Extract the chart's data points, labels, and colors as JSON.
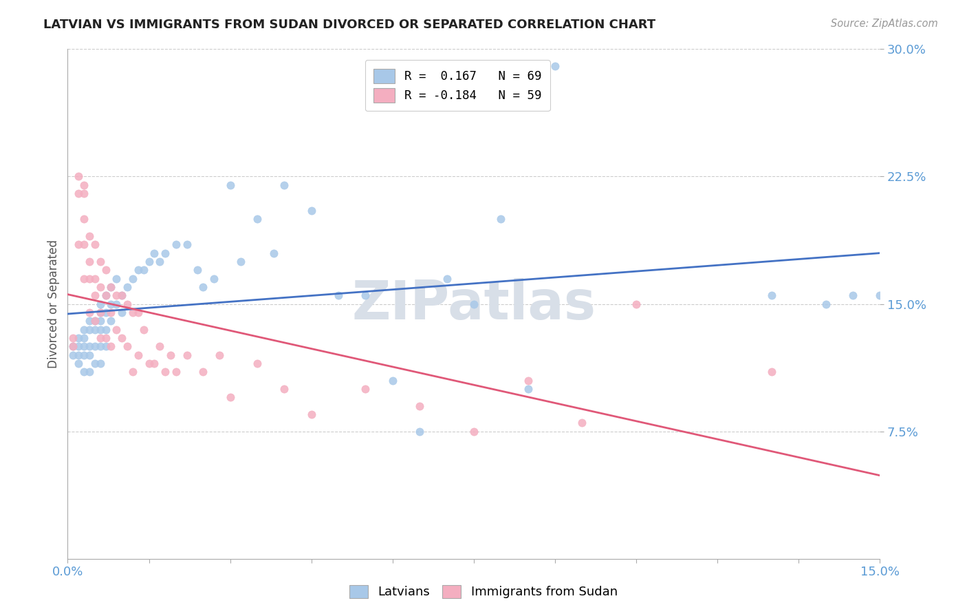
{
  "title": "LATVIAN VS IMMIGRANTS FROM SUDAN DIVORCED OR SEPARATED CORRELATION CHART",
  "source_text": "Source: ZipAtlas.com",
  "ylabel": "Divorced or Separated",
  "xlim": [
    0.0,
    0.15
  ],
  "ylim": [
    0.0,
    0.3
  ],
  "xtick_positions": [
    0.0,
    0.015,
    0.03,
    0.045,
    0.06,
    0.075,
    0.09,
    0.105,
    0.12,
    0.135,
    0.15
  ],
  "xticklabels": [
    "0.0%",
    "",
    "",
    "",
    "",
    "",
    "",
    "",
    "",
    "",
    "15.0%"
  ],
  "ytick_positions": [
    0.075,
    0.15,
    0.225,
    0.3
  ],
  "yticklabels": [
    "7.5%",
    "15.0%",
    "22.5%",
    "30.0%"
  ],
  "legend1_label": "R =  0.167   N = 69",
  "legend2_label": "R = -0.184   N = 59",
  "latvian_color": "#a8c8e8",
  "sudan_color": "#f4aec0",
  "latvian_line_color": "#4472c4",
  "sudan_line_color": "#e05878",
  "grid_color": "#cccccc",
  "watermark_color": "#d8dfe8",
  "latvian_scatter_x": [
    0.001,
    0.001,
    0.002,
    0.002,
    0.002,
    0.002,
    0.003,
    0.003,
    0.003,
    0.003,
    0.003,
    0.004,
    0.004,
    0.004,
    0.004,
    0.004,
    0.005,
    0.005,
    0.005,
    0.005,
    0.006,
    0.006,
    0.006,
    0.006,
    0.006,
    0.006,
    0.007,
    0.007,
    0.007,
    0.007,
    0.008,
    0.008,
    0.008,
    0.009,
    0.009,
    0.01,
    0.01,
    0.011,
    0.012,
    0.013,
    0.014,
    0.015,
    0.016,
    0.017,
    0.018,
    0.02,
    0.022,
    0.024,
    0.025,
    0.027,
    0.03,
    0.032,
    0.035,
    0.038,
    0.04,
    0.045,
    0.05,
    0.055,
    0.06,
    0.065,
    0.07,
    0.075,
    0.08,
    0.085,
    0.09,
    0.13,
    0.14,
    0.145,
    0.15
  ],
  "latvian_scatter_y": [
    0.125,
    0.12,
    0.13,
    0.125,
    0.12,
    0.115,
    0.135,
    0.13,
    0.125,
    0.12,
    0.11,
    0.14,
    0.135,
    0.125,
    0.12,
    0.11,
    0.14,
    0.135,
    0.125,
    0.115,
    0.15,
    0.145,
    0.14,
    0.135,
    0.125,
    0.115,
    0.155,
    0.145,
    0.135,
    0.125,
    0.16,
    0.15,
    0.14,
    0.165,
    0.15,
    0.155,
    0.145,
    0.16,
    0.165,
    0.17,
    0.17,
    0.175,
    0.18,
    0.175,
    0.18,
    0.185,
    0.185,
    0.17,
    0.16,
    0.165,
    0.22,
    0.175,
    0.2,
    0.18,
    0.22,
    0.205,
    0.155,
    0.155,
    0.105,
    0.075,
    0.165,
    0.15,
    0.2,
    0.1,
    0.29,
    0.155,
    0.15,
    0.155,
    0.155
  ],
  "sudan_scatter_x": [
    0.001,
    0.001,
    0.002,
    0.002,
    0.002,
    0.003,
    0.003,
    0.003,
    0.003,
    0.003,
    0.004,
    0.004,
    0.004,
    0.004,
    0.005,
    0.005,
    0.005,
    0.005,
    0.006,
    0.006,
    0.006,
    0.006,
    0.007,
    0.007,
    0.007,
    0.008,
    0.008,
    0.008,
    0.009,
    0.009,
    0.01,
    0.01,
    0.011,
    0.011,
    0.012,
    0.012,
    0.013,
    0.013,
    0.014,
    0.015,
    0.016,
    0.017,
    0.018,
    0.019,
    0.02,
    0.022,
    0.025,
    0.028,
    0.03,
    0.035,
    0.04,
    0.045,
    0.055,
    0.065,
    0.075,
    0.085,
    0.095,
    0.105,
    0.13
  ],
  "sudan_scatter_y": [
    0.13,
    0.125,
    0.225,
    0.215,
    0.185,
    0.22,
    0.215,
    0.2,
    0.185,
    0.165,
    0.19,
    0.175,
    0.165,
    0.145,
    0.185,
    0.165,
    0.155,
    0.14,
    0.175,
    0.16,
    0.145,
    0.13,
    0.17,
    0.155,
    0.13,
    0.16,
    0.145,
    0.125,
    0.155,
    0.135,
    0.155,
    0.13,
    0.15,
    0.125,
    0.145,
    0.11,
    0.145,
    0.12,
    0.135,
    0.115,
    0.115,
    0.125,
    0.11,
    0.12,
    0.11,
    0.12,
    0.11,
    0.12,
    0.095,
    0.115,
    0.1,
    0.085,
    0.1,
    0.09,
    0.075,
    0.105,
    0.08,
    0.15,
    0.11
  ]
}
